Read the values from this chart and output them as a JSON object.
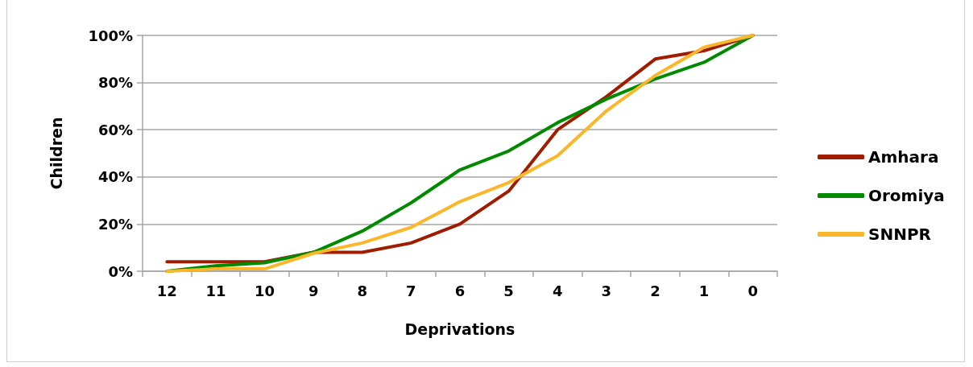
{
  "chart_data": {
    "type": "line",
    "xlabel": "Deprivations",
    "ylabel": "Children",
    "categories": [
      "12",
      "11",
      "10",
      "9",
      "8",
      "7",
      "6",
      "5",
      "4",
      "3",
      "2",
      "1",
      "0"
    ],
    "series": [
      {
        "name": "Amhara",
        "color": "#a01c00",
        "values": [
          4,
          4,
          4,
          8,
          8,
          12,
          20,
          34,
          60,
          74,
          90,
          93.5,
          100
        ]
      },
      {
        "name": "Oromiya",
        "color": "#008a00",
        "values": [
          0,
          2.3,
          3.6,
          8,
          17,
          29,
          43,
          51,
          63,
          73,
          81.5,
          88.6,
          100
        ]
      },
      {
        "name": "SNNPR",
        "color": "#fbb62a",
        "values": [
          0,
          1,
          1,
          7.6,
          12,
          18.6,
          29.5,
          37.6,
          49,
          68,
          83,
          95,
          100
        ]
      }
    ],
    "ylim": [
      0,
      100
    ],
    "yticks": [
      {
        "value": 0,
        "label": "0%"
      },
      {
        "value": 20,
        "label": "20%"
      },
      {
        "value": 40,
        "label": "40%"
      },
      {
        "value": 60,
        "label": "60%"
      },
      {
        "value": 80,
        "label": "80%"
      },
      {
        "value": 100,
        "label": "100%"
      }
    ],
    "grid": "y",
    "legend": "right",
    "marker": "none",
    "line_style": "solid"
  }
}
